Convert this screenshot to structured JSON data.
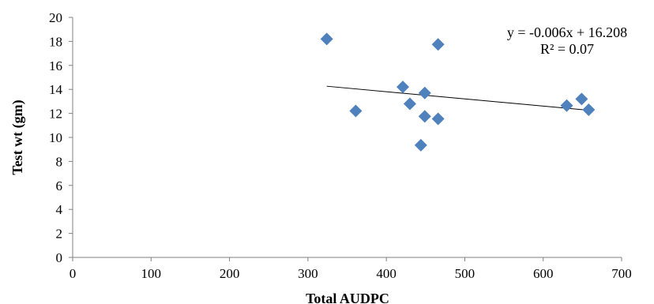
{
  "chart_data": {
    "type": "scatter",
    "xlabel": "Total AUDPC",
    "ylabel": "Test wt (gm)",
    "xlim": [
      0,
      700
    ],
    "ylim": [
      0,
      20
    ],
    "x_ticks": [
      "0",
      "100",
      "200",
      "300",
      "400",
      "500",
      "600",
      "700"
    ],
    "y_ticks": [
      "0",
      "2",
      "4",
      "6",
      "8",
      "10",
      "12",
      "14",
      "16",
      "18",
      "20"
    ],
    "marker_color": "#4F81BD",
    "marker_shape": "diamond",
    "grid": false,
    "points": [
      {
        "x": 324,
        "y": 18.2
      },
      {
        "x": 361,
        "y": 12.2
      },
      {
        "x": 421,
        "y": 14.2
      },
      {
        "x": 430,
        "y": 12.8
      },
      {
        "x": 444,
        "y": 9.35
      },
      {
        "x": 449,
        "y": 13.7
      },
      {
        "x": 449,
        "y": 11.75
      },
      {
        "x": 466,
        "y": 17.75
      },
      {
        "x": 466,
        "y": 11.55
      },
      {
        "x": 630,
        "y": 12.65
      },
      {
        "x": 649,
        "y": 13.2
      },
      {
        "x": 658,
        "y": 12.3
      }
    ],
    "trendline": {
      "type": "linear",
      "slope": -0.006,
      "intercept": 16.208,
      "x_range": [
        324,
        658
      ],
      "color": "#000000"
    },
    "annotations": {
      "equation": "y = -0.006x + 16.208",
      "r_squared": "R² = 0.07"
    }
  }
}
